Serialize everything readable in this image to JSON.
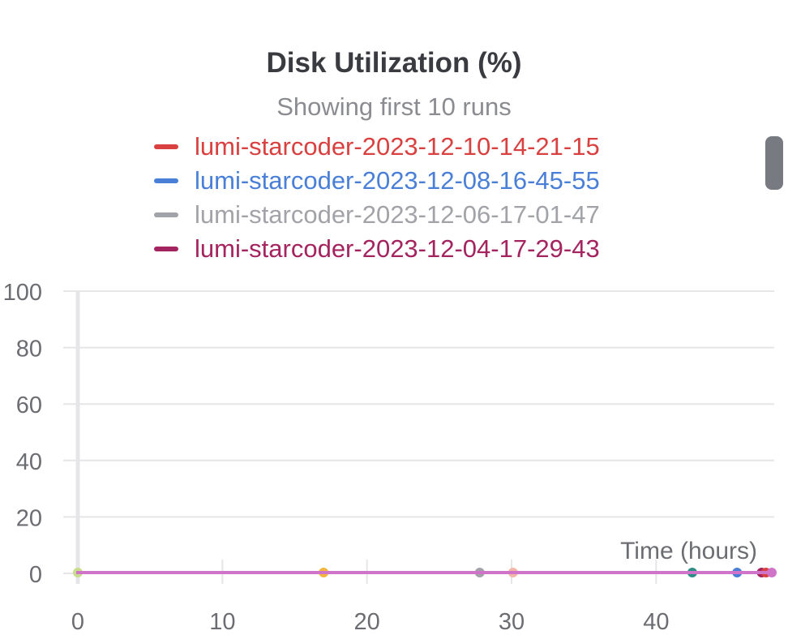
{
  "chart_data": {
    "type": "line",
    "title": "Disk Utilization (%)",
    "subtitle": "Showing first 10 runs",
    "xlabel": "Time (hours)",
    "ylabel": "",
    "xlim": [
      0,
      48
    ],
    "ylim": [
      0,
      100
    ],
    "x_ticks": [
      0,
      10,
      20,
      30,
      40
    ],
    "y_ticks": [
      0,
      20,
      40,
      60,
      80,
      100
    ],
    "grid": true,
    "legend_position": "top",
    "legend": [
      {
        "name": "lumi-starcoder-2023-12-10-14-21-15",
        "color": "#d94140"
      },
      {
        "name": "lumi-starcoder-2023-12-08-16-45-55",
        "color": "#4a7fd8"
      },
      {
        "name": "lumi-starcoder-2023-12-06-17-01-47",
        "color": "#a2a3a8"
      },
      {
        "name": "lumi-starcoder-2023-12-04-17-29-43",
        "color": "#a3245f"
      }
    ],
    "series": [
      {
        "color": "#c9dc8f",
        "x": [
          0,
          0
        ],
        "y": [
          0.3,
          0.3
        ]
      },
      {
        "color": "#f3b53c",
        "x": [
          0,
          17
        ],
        "y": [
          0.3,
          0.3
        ]
      },
      {
        "color": "#a2a3a8",
        "x": [
          0,
          27.8
        ],
        "y": [
          0.3,
          0.3
        ]
      },
      {
        "color": "#f2b7a8",
        "x": [
          0,
          30.1
        ],
        "y": [
          0.3,
          0.3
        ]
      },
      {
        "color": "#2b8c88",
        "x": [
          0,
          42.5
        ],
        "y": [
          0.3,
          0.3
        ]
      },
      {
        "color": "#4a7fd8",
        "x": [
          0,
          45.6
        ],
        "y": [
          0.3,
          0.3
        ]
      },
      {
        "color": "#a3245f",
        "x": [
          0,
          47.3
        ],
        "y": [
          0.3,
          0.3
        ]
      },
      {
        "color": "#d94140",
        "x": [
          0,
          47.6
        ],
        "y": [
          0.3,
          0.3
        ]
      },
      {
        "color": "#d074c9",
        "x": [
          0,
          48
        ],
        "y": [
          0.3,
          0.3
        ]
      }
    ]
  }
}
